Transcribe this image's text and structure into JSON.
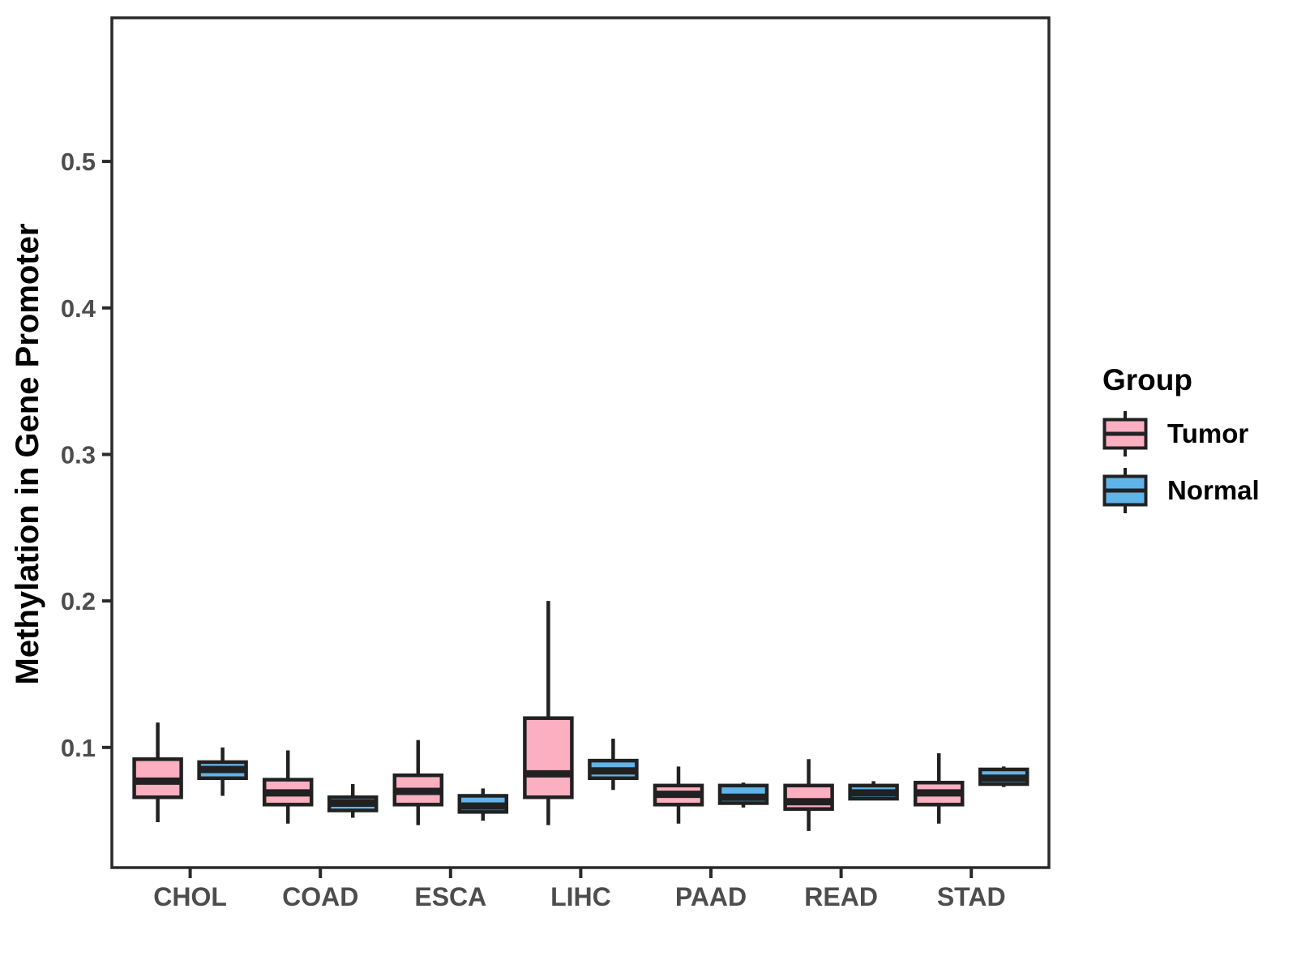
{
  "legend": {
    "title": "Group",
    "entries": [
      {
        "label": "Tumor",
        "color": "#FBAFC0"
      },
      {
        "label": "Normal",
        "color": "#5FB4EA"
      }
    ]
  },
  "chart_data": {
    "type": "boxplot",
    "title": "",
    "xlabel": "",
    "ylabel": "Methylation in Gene Promoter",
    "categories": [
      "CHOL",
      "COAD",
      "ESCA",
      "LIHC",
      "PAAD",
      "READ",
      "STAD"
    ],
    "yticks": [
      0.1,
      0.2,
      0.3,
      0.4,
      0.5
    ],
    "ytick_labels": [
      "0.1",
      "0.2",
      "0.3",
      "0.4",
      "0.5"
    ],
    "ylim": [
      0.018,
      0.598
    ],
    "grid": false,
    "legend_position": "right",
    "stroke_color": "#212121",
    "axis_text_color": "#4d4d4d",
    "panel_border_color": "#2a2a2a",
    "series": [
      {
        "name": "Tumor",
        "fill": "#FBAFC0",
        "boxes": [
          {
            "min": 0.049,
            "q1": 0.066,
            "median": 0.077,
            "q3": 0.092,
            "max": 0.117
          },
          {
            "min": 0.048,
            "q1": 0.061,
            "median": 0.069,
            "q3": 0.078,
            "max": 0.098
          },
          {
            "min": 0.047,
            "q1": 0.061,
            "median": 0.07,
            "q3": 0.081,
            "max": 0.105
          },
          {
            "min": 0.047,
            "q1": 0.066,
            "median": 0.082,
            "q3": 0.12,
            "max": 0.2
          },
          {
            "min": 0.048,
            "q1": 0.061,
            "median": 0.068,
            "q3": 0.074,
            "max": 0.087
          },
          {
            "min": 0.043,
            "q1": 0.058,
            "median": 0.063,
            "q3": 0.074,
            "max": 0.092
          },
          {
            "min": 0.048,
            "q1": 0.061,
            "median": 0.069,
            "q3": 0.076,
            "max": 0.096
          }
        ]
      },
      {
        "name": "Normal",
        "fill": "#5FB4EA",
        "boxes": [
          {
            "min": 0.067,
            "q1": 0.079,
            "median": 0.085,
            "q3": 0.09,
            "max": 0.1
          },
          {
            "min": 0.052,
            "q1": 0.057,
            "median": 0.062,
            "q3": 0.066,
            "max": 0.075
          },
          {
            "min": 0.05,
            "q1": 0.056,
            "median": 0.06,
            "q3": 0.067,
            "max": 0.072
          },
          {
            "min": 0.071,
            "q1": 0.079,
            "median": 0.084,
            "q3": 0.091,
            "max": 0.106
          },
          {
            "min": 0.059,
            "q1": 0.062,
            "median": 0.066,
            "q3": 0.074,
            "max": 0.076
          },
          {
            "min": 0.064,
            "q1": 0.065,
            "median": 0.069,
            "q3": 0.074,
            "max": 0.077
          },
          {
            "min": 0.073,
            "q1": 0.075,
            "median": 0.079,
            "q3": 0.085,
            "max": 0.087
          }
        ]
      }
    ]
  }
}
